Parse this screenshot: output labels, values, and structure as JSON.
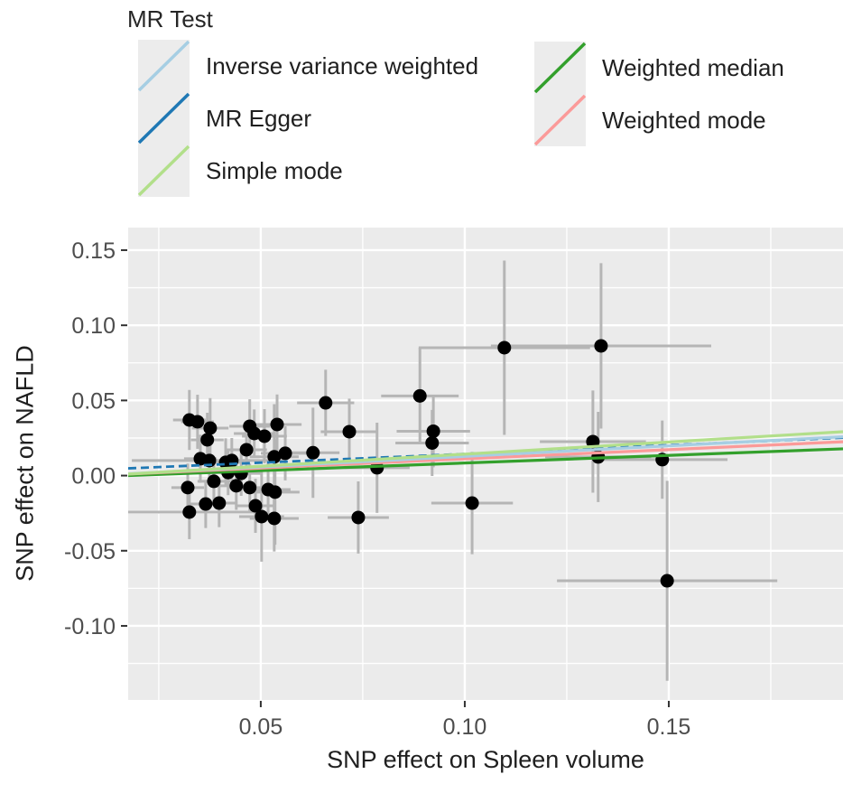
{
  "legend": {
    "title": "MR Test",
    "items": [
      {
        "label": "Inverse variance weighted",
        "color": "#a6cee3"
      },
      {
        "label": "MR Egger",
        "color": "#1f78b4"
      },
      {
        "label": "Simple mode",
        "color": "#b2df8a"
      },
      {
        "label": "Weighted median",
        "color": "#33a02c"
      },
      {
        "label": "Weighted mode",
        "color": "#fb9a99"
      }
    ]
  },
  "chart_data": {
    "type": "scatter",
    "title": "",
    "xlabel": "SNP effect on Spleen volume",
    "ylabel": "SNP effect on NAFLD",
    "xlim": [
      0.0175,
      0.1927
    ],
    "ylim": [
      -0.1493,
      0.165
    ],
    "x_ticks": [
      0.05,
      0.1,
      0.15
    ],
    "y_ticks": [
      0.15,
      0.1,
      0.05,
      0.0,
      -0.05,
      -0.1
    ],
    "x_minor_ticks": [
      0.025,
      0.075,
      0.125,
      0.175
    ],
    "y_minor_ticks": [
      0.125,
      0.075,
      0.025,
      -0.025,
      -0.075,
      -0.125
    ],
    "grid": true,
    "legend_position": "top-left",
    "panel_bg": "#ebebeb",
    "grid_color": "#ffffff",
    "point_color": "#000000",
    "errorbar_color": "#b5b5b5",
    "tick_label_color": "#4d4d4d",
    "points_note": "each point = [snp_effect_on_spleen_volume, snp_effect_on_nafld, x_se_halfwidth, y_se_halfwidth]",
    "points": [
      [
        0.0325,
        0.037,
        0.004,
        0.02
      ],
      [
        0.0345,
        0.0358,
        0.004,
        0.018
      ],
      [
        0.0376,
        0.0316,
        0.0045,
        0.02
      ],
      [
        0.0369,
        0.0238,
        0.004,
        0.018
      ],
      [
        0.0659,
        0.0484,
        0.007,
        0.022
      ],
      [
        0.0473,
        0.0328,
        0.005,
        0.018
      ],
      [
        0.0484,
        0.028,
        0.005,
        0.016
      ],
      [
        0.0509,
        0.0262,
        0.0055,
        0.018
      ],
      [
        0.054,
        0.034,
        0.006,
        0.02
      ],
      [
        0.0465,
        0.0172,
        0.005,
        0.016
      ],
      [
        0.0533,
        0.0125,
        0.006,
        0.035
      ],
      [
        0.056,
        0.0148,
        0.006,
        0.018
      ],
      [
        0.0628,
        0.0152,
        0.0065,
        0.03
      ],
      [
        0.0717,
        0.0292,
        0.007,
        0.022
      ],
      [
        0.0352,
        0.0112,
        0.004,
        0.016
      ],
      [
        0.0374,
        0.01,
        0.019,
        0.015
      ],
      [
        0.0414,
        0.0088,
        0.0045,
        0.016
      ],
      [
        0.0429,
        0.01,
        0.0045,
        0.015
      ],
      [
        0.0321,
        -0.008,
        0.004,
        0.016
      ],
      [
        0.0385,
        -0.0038,
        0.004,
        0.015
      ],
      [
        0.044,
        -0.0068,
        0.005,
        0.016
      ],
      [
        0.0473,
        -0.008,
        0.005,
        0.016
      ],
      [
        0.0518,
        -0.0093,
        0.0055,
        0.018
      ],
      [
        0.0535,
        -0.011,
        0.006,
        0.035
      ],
      [
        0.0365,
        -0.0189,
        0.004,
        0.016
      ],
      [
        0.0398,
        -0.0183,
        0.0045,
        0.016
      ],
      [
        0.0325,
        -0.0243,
        0.016,
        0.018
      ],
      [
        0.0487,
        -0.0201,
        0.005,
        0.018
      ],
      [
        0.0502,
        -0.0273,
        0.0055,
        0.03
      ],
      [
        0.0533,
        -0.0285,
        0.006,
        0.022
      ],
      [
        0.0739,
        -0.0279,
        0.0075,
        0.024
      ],
      [
        0.042,
        0.002,
        0.005,
        0.015
      ],
      [
        0.0452,
        0.0015,
        0.005,
        0.015
      ],
      [
        0.089,
        0.053,
        0.0095,
        0.032
      ],
      [
        0.1097,
        0.0851,
        0.021,
        0.058
      ],
      [
        0.0923,
        0.0295,
        0.009,
        0.024
      ],
      [
        0.092,
        0.0217,
        0.009,
        0.022
      ],
      [
        0.0785,
        0.0052,
        0.008,
        0.03
      ],
      [
        0.1018,
        -0.0183,
        0.01,
        0.034
      ],
      [
        0.1334,
        0.0863,
        0.027,
        0.055
      ],
      [
        0.1314,
        0.0226,
        0.013,
        0.034
      ],
      [
        0.1327,
        0.0124,
        0.013,
        0.03
      ],
      [
        0.1484,
        0.0106,
        0.016,
        0.026
      ],
      [
        0.1496,
        -0.07,
        0.027,
        0.0665
      ]
    ],
    "lines": [
      {
        "name": "Weighted median",
        "color": "#33a02c",
        "y_at_xmin": 0.0,
        "y_at_xmax": 0.0178,
        "dash": ""
      },
      {
        "name": "Weighted mode",
        "color": "#fb9a99",
        "y_at_xmin": 0.001,
        "y_at_xmax": 0.0225,
        "dash": ""
      },
      {
        "name": "MR Egger",
        "color": "#1f78b4",
        "y_at_xmin": 0.0048,
        "y_at_xmax": 0.0252,
        "dash": "9 5"
      },
      {
        "name": "Inverse variance weighted",
        "color": "#a6cee3",
        "y_at_xmin": 0.0012,
        "y_at_xmax": 0.0258,
        "dash": ""
      },
      {
        "name": "Simple mode",
        "color": "#b2df8a",
        "y_at_xmin": 0.001,
        "y_at_xmax": 0.0292,
        "dash": ""
      }
    ]
  }
}
